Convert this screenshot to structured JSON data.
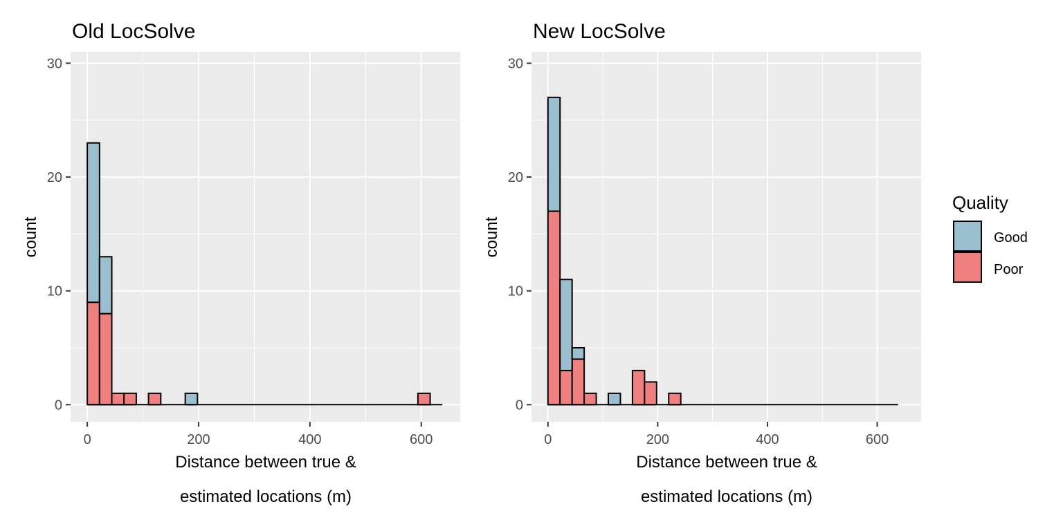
{
  "chart_data": [
    {
      "type": "bar",
      "subtype": "stacked-histogram",
      "title": "Old LocSolve",
      "xlabel_lines": [
        "Distance between true &",
        "estimated locations (m)"
      ],
      "ylabel": "count",
      "xlim": [
        -30,
        670
      ],
      "ylim": [
        -1.5,
        31
      ],
      "xticks": [
        0,
        200,
        400,
        600
      ],
      "yticks": [
        0,
        10,
        20,
        30
      ],
      "bin_width": 22,
      "series": [
        {
          "name": "Poor",
          "color": "#f08080",
          "bins": [
            [
              11,
              9
            ],
            [
              33,
              8
            ],
            [
              55,
              1
            ],
            [
              77,
              1
            ],
            [
              121,
              1
            ],
            [
              605,
              1
            ]
          ]
        },
        {
          "name": "Good",
          "color": "#9abfce",
          "bins": [
            [
              11,
              14
            ],
            [
              33,
              5
            ],
            [
              187,
              1
            ]
          ]
        }
      ],
      "baseline": [
        11,
        638
      ]
    },
    {
      "type": "bar",
      "subtype": "stacked-histogram",
      "title": "New LocSolve",
      "xlabel_lines": [
        "Distance between true &",
        "estimated locations (m)"
      ],
      "ylabel": "count",
      "xlim": [
        -30,
        680
      ],
      "ylim": [
        -1.5,
        31
      ],
      "xticks": [
        0,
        200,
        400,
        600
      ],
      "yticks": [
        0,
        10,
        20,
        30
      ],
      "bin_width": 22,
      "series": [
        {
          "name": "Poor",
          "color": "#f08080",
          "bins": [
            [
              11,
              17
            ],
            [
              33,
              3
            ],
            [
              55,
              4
            ],
            [
              77,
              1
            ],
            [
              165,
              3
            ],
            [
              187,
              2
            ],
            [
              231,
              1
            ]
          ]
        },
        {
          "name": "Good",
          "color": "#9abfce",
          "bins": [
            [
              11,
              10
            ],
            [
              33,
              8
            ],
            [
              55,
              1
            ],
            [
              121,
              1
            ]
          ]
        }
      ],
      "baseline": [
        11,
        638
      ]
    }
  ],
  "legend": {
    "title": "Quality",
    "items": [
      {
        "label": "Good",
        "color": "#9abfce"
      },
      {
        "label": "Poor",
        "color": "#f08080"
      }
    ]
  }
}
